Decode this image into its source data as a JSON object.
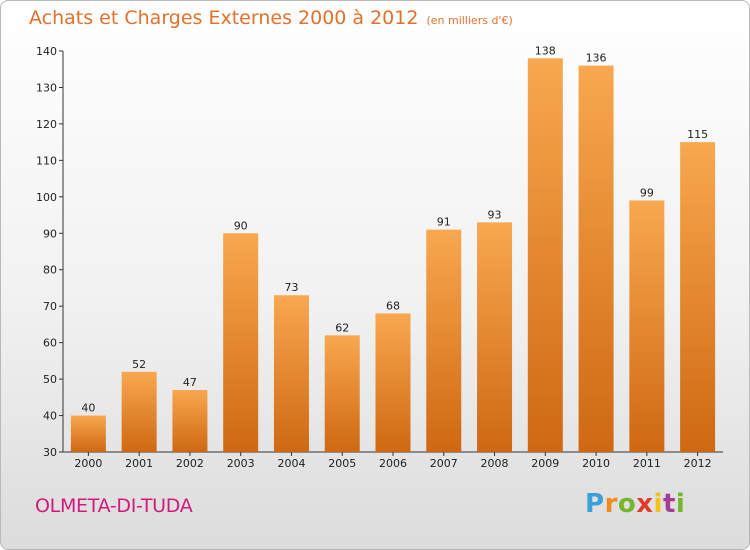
{
  "header": {
    "title": "Achats et Charges Externes 2000 à 2012",
    "unit": "(en milliers d'€)"
  },
  "footer": {
    "commune": "OLMETA-DI-TUDA",
    "logo": "Proxiti"
  },
  "colors": {
    "bar_top": "#f8a850",
    "bar_bottom": "#cf6812",
    "title": "#e2712b",
    "commune": "#d3197c"
  },
  "chart_data": {
    "type": "bar",
    "title": "Achats et Charges Externes 2000 à 2012",
    "subtitle": "(en milliers d'€)",
    "categories": [
      "2000",
      "2001",
      "2002",
      "2003",
      "2004",
      "2005",
      "2006",
      "2007",
      "2008",
      "2009",
      "2010",
      "2011",
      "2012"
    ],
    "values": [
      40,
      52,
      47,
      90,
      73,
      62,
      68,
      91,
      93,
      138,
      136,
      99,
      115
    ],
    "ylim": [
      30,
      140
    ],
    "yticks": [
      30,
      40,
      50,
      60,
      70,
      80,
      90,
      100,
      110,
      120,
      130,
      140
    ],
    "grid": false,
    "xlabel": "",
    "ylabel": ""
  }
}
